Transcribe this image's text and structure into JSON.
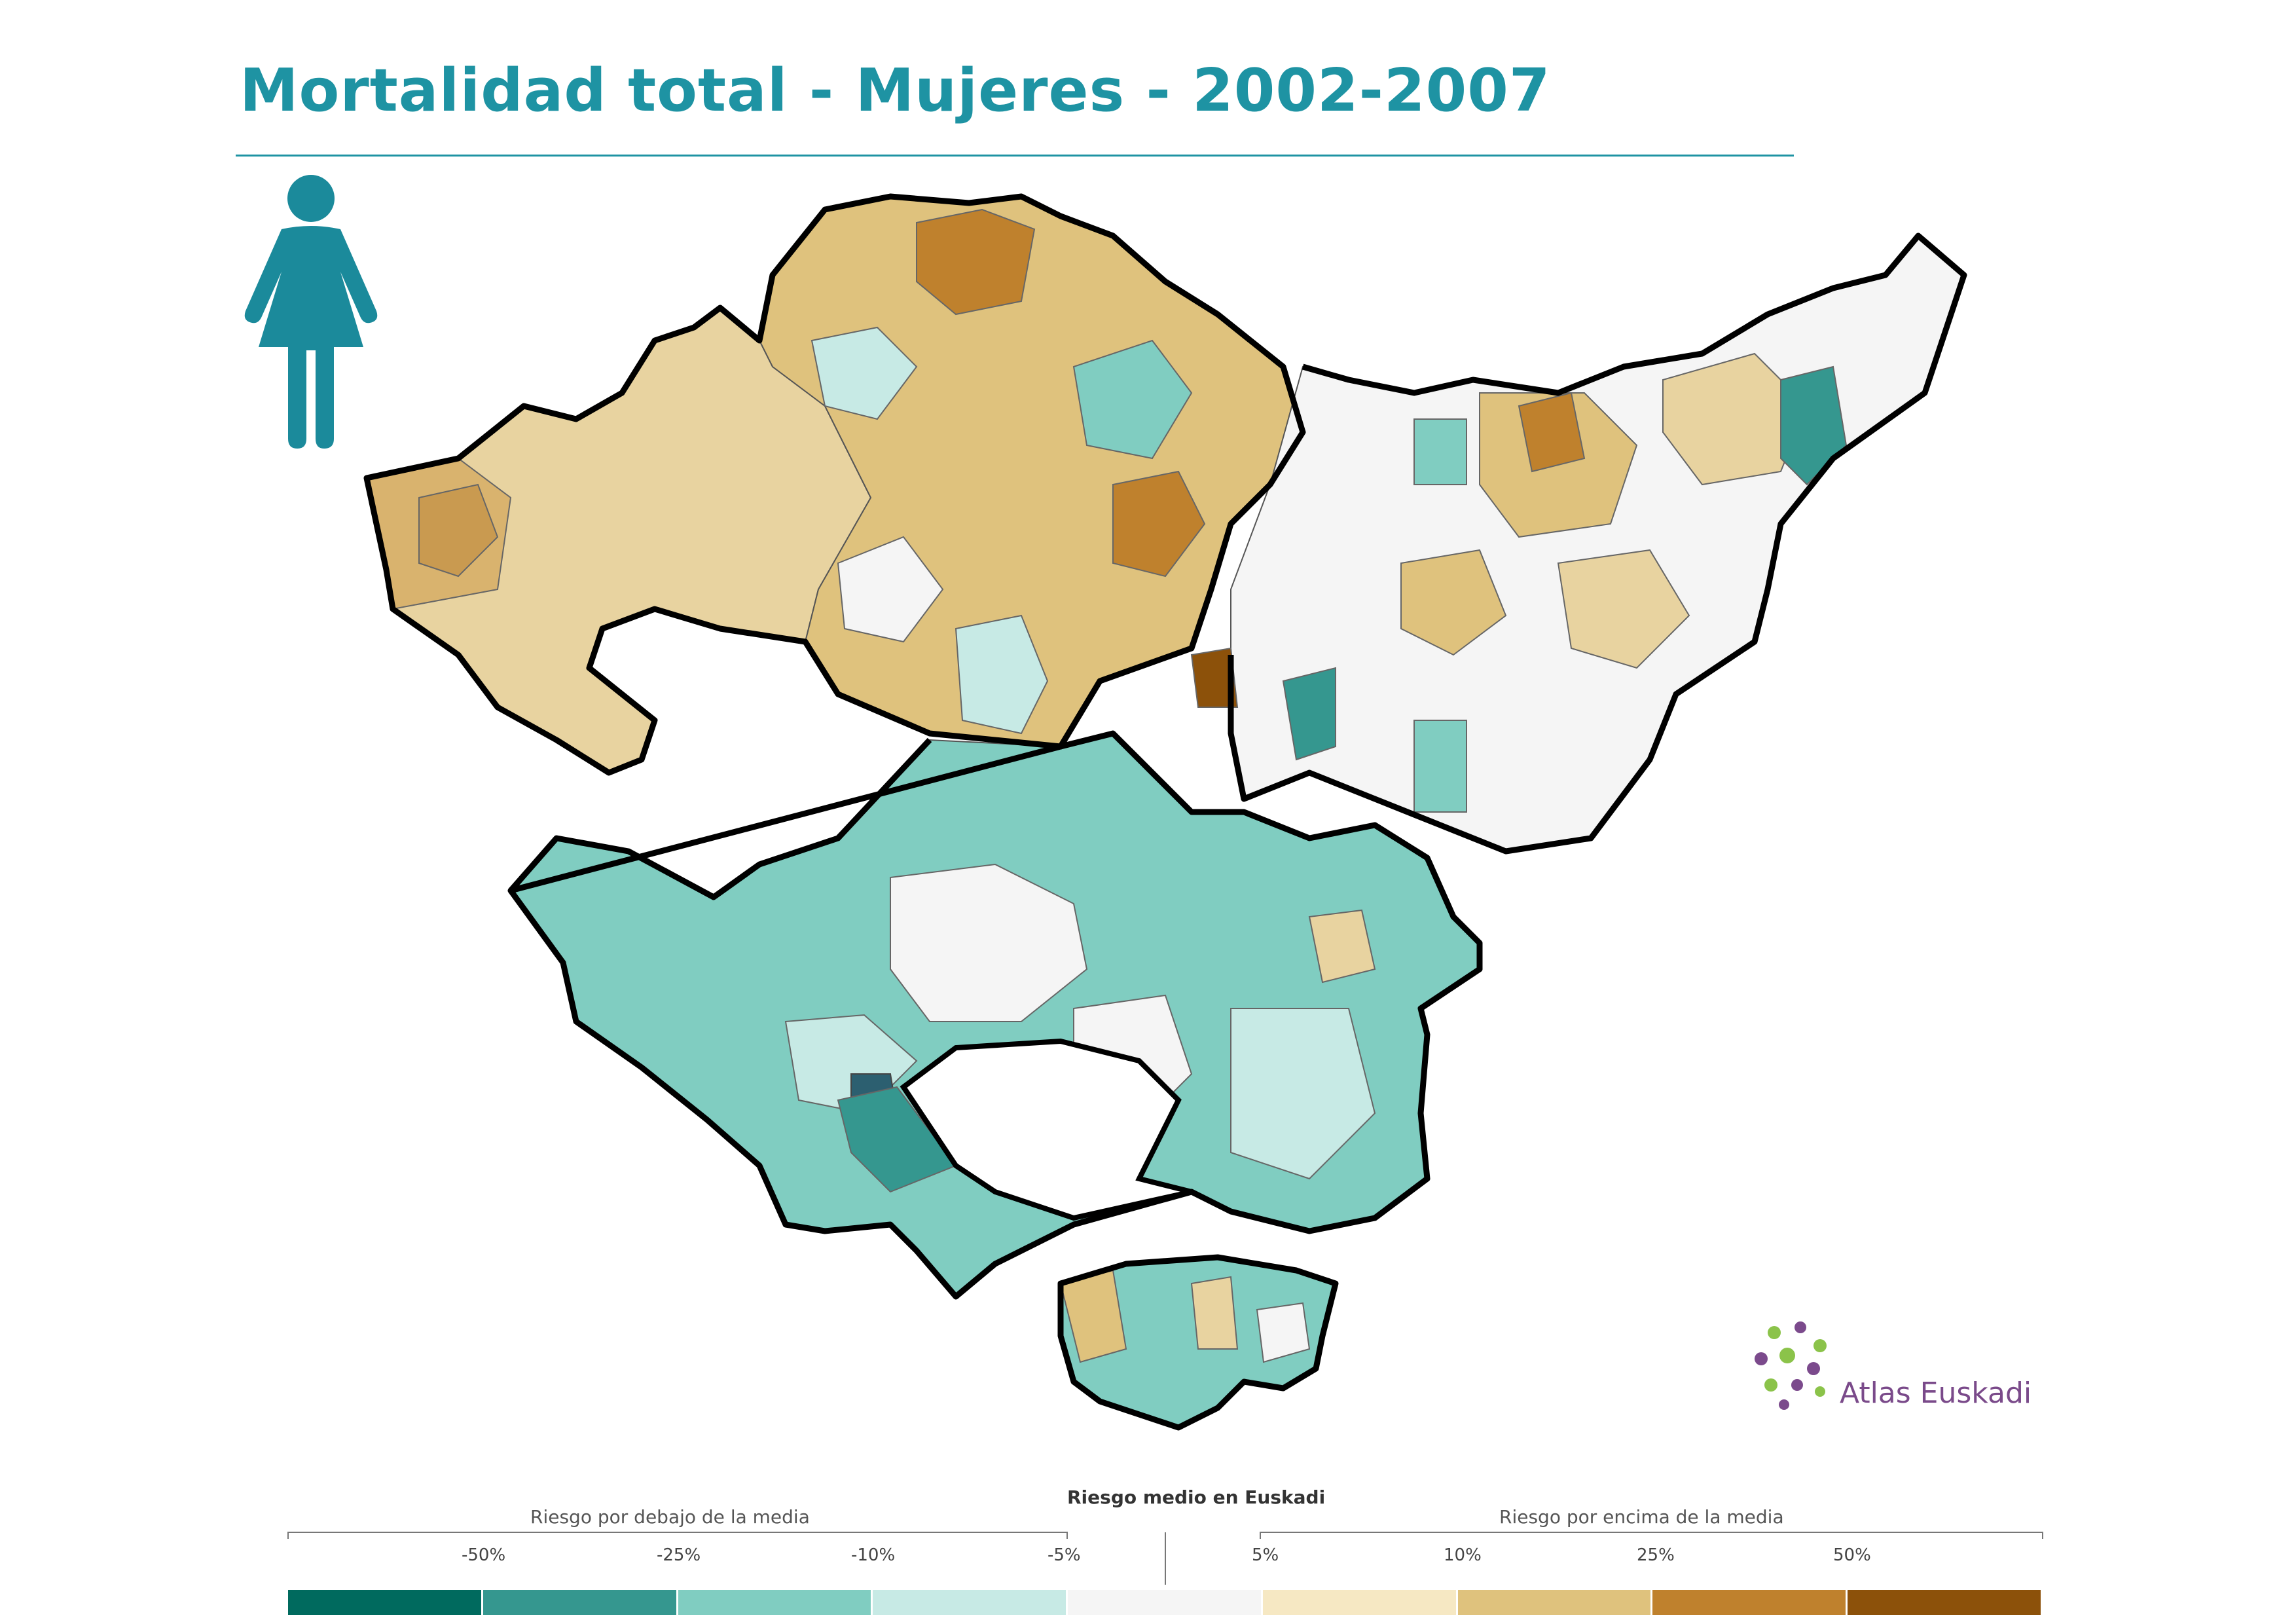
{
  "title": "Mortalidad total - Mujeres - 2002-2007",
  "icon": "woman-figure-icon",
  "logo": {
    "text": "Atlas Euskadi",
    "icon": "atlas-euskadi-globe-logo"
  },
  "colors": {
    "title": "#1e93a3",
    "icon": "#1b8a9b",
    "province_border": "#000000",
    "municipality_border": "#555555"
  },
  "legend": {
    "below_label": "Riesgo por debajo de la media",
    "center_label": "Riesgo medio en Euskadi",
    "above_label": "Riesgo por encima de la media",
    "ticks": [
      "-50%",
      "-25%",
      "-10%",
      "-5%",
      "5%",
      "10%",
      "25%",
      "50%"
    ],
    "classes": [
      {
        "color": "#006a5e"
      },
      {
        "color": "#35978f"
      },
      {
        "color": "#80cdc1"
      },
      {
        "color": "#c7eae5"
      },
      {
        "color": "#f5f5f5"
      },
      {
        "color": "#f6e8c3"
      },
      {
        "color": "#dfc27d"
      },
      {
        "color": "#bf812d"
      },
      {
        "color": "#8c510a"
      }
    ]
  }
}
